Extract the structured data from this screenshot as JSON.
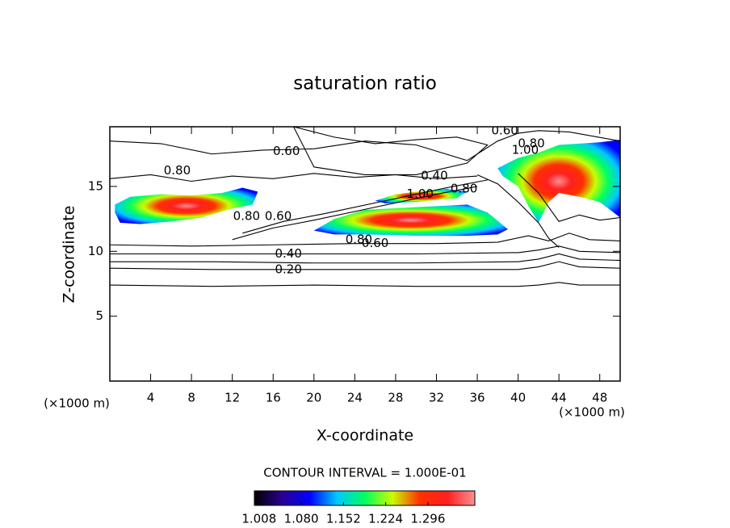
{
  "chart_data": {
    "type": "contour",
    "title": "saturation ratio",
    "xlabel": "X-coordinate",
    "ylabel": "Z-coordinate",
    "x_unit": "(×1000 m)",
    "y_unit": "(×1000 m)",
    "xlim": [
      0,
      50
    ],
    "ylim": [
      0,
      19.6
    ],
    "xticks": [
      4,
      8,
      12,
      16,
      20,
      24,
      28,
      32,
      36,
      40,
      44,
      48
    ],
    "yticks": [
      5,
      10,
      15
    ],
    "contour_interval_text": "CONTOUR INTERVAL = 1.000E-01",
    "line_color": "#000000",
    "contours": [
      {
        "x": [
          0,
          10,
          20,
          30,
          40,
          42,
          44,
          46,
          50
        ],
        "z": [
          7.4,
          7.3,
          7.4,
          7.3,
          7.3,
          7.4,
          7.6,
          7.4,
          7.4
        ]
      },
      {
        "x": [
          0,
          10,
          20,
          30,
          40,
          42,
          44,
          46,
          50
        ],
        "z": [
          8.7,
          8.6,
          8.6,
          8.6,
          8.6,
          8.8,
          9.2,
          8.8,
          8.7
        ]
      },
      {
        "x": [
          0,
          10,
          20,
          30,
          40,
          42,
          44,
          46,
          50
        ],
        "z": [
          9.2,
          9.2,
          9.1,
          9.1,
          9.2,
          9.4,
          9.8,
          9.4,
          9.3
        ]
      },
      {
        "x": [
          0,
          10,
          20,
          30,
          40,
          42,
          44,
          46,
          50
        ],
        "z": [
          9.8,
          9.8,
          9.8,
          9.8,
          9.9,
          10.1,
          10.4,
          10.0,
          9.9
        ]
      },
      {
        "x": [
          0,
          8,
          16,
          24,
          32,
          38,
          41,
          43,
          45,
          47,
          50
        ],
        "z": [
          10.5,
          10.4,
          10.5,
          10.6,
          10.6,
          10.7,
          11.2,
          10.8,
          11.4,
          10.9,
          10.8
        ]
      },
      {
        "x": [
          0,
          5,
          10,
          15,
          20,
          25,
          30,
          35,
          38,
          40,
          42,
          45,
          50
        ],
        "z": [
          18.5,
          18.3,
          17.5,
          17.8,
          17.9,
          18.5,
          18.2,
          17.0,
          18.5,
          19.1,
          19.3,
          19.2,
          18.5
        ]
      },
      {
        "x": [
          18,
          22,
          26,
          30,
          34,
          37,
          35,
          30,
          25,
          20,
          18
        ],
        "z": [
          19.6,
          18.8,
          18.3,
          18.6,
          18.8,
          18.2,
          16.8,
          15.9,
          15.9,
          16.5,
          19.6
        ]
      },
      {
        "x": [
          12,
          16,
          20,
          26,
          32,
          36
        ],
        "z": [
          10.9,
          11.8,
          12.4,
          13.4,
          14.4,
          15.0
        ]
      },
      {
        "x": [
          13,
          17,
          21,
          27,
          33,
          37
        ],
        "z": [
          11.4,
          12.3,
          12.9,
          13.9,
          14.9,
          15.5
        ]
      },
      {
        "x": [
          0,
          4,
          8,
          12,
          16,
          20,
          24,
          28,
          32,
          36
        ],
        "z": [
          15.6,
          15.9,
          15.4,
          15.8,
          15.6,
          16.0,
          15.7,
          15.9,
          15.6,
          15.8
        ]
      },
      {
        "x": [
          36,
          38,
          40,
          42,
          43,
          44
        ],
        "z": [
          15.9,
          15.2,
          13.8,
          12.2,
          11.0,
          10.3
        ]
      },
      {
        "x": [
          40,
          42,
          44,
          46,
          48,
          50
        ],
        "z": [
          16.0,
          14.5,
          12.3,
          12.8,
          12.4,
          12.6
        ]
      }
    ],
    "regions": [
      {
        "x": [
          0.5,
          2,
          5,
          8,
          11,
          13,
          14.5,
          14,
          12,
          9,
          6,
          3,
          1,
          0.5
        ],
        "z": [
          13.6,
          14.2,
          14.4,
          14.3,
          14.5,
          14.9,
          14.6,
          13.6,
          13.3,
          12.6,
          12.3,
          12.1,
          12.2,
          13
        ]
      },
      {
        "x": [
          20,
          22,
          25,
          30,
          35,
          37,
          39,
          38,
          35,
          30,
          25,
          22,
          20
        ],
        "z": [
          11.6,
          12.5,
          13.2,
          13.4,
          13.6,
          13,
          11.7,
          11.3,
          11.2,
          11.2,
          11.3,
          11.3,
          11.6
        ]
      },
      {
        "x": [
          38,
          40,
          42,
          44,
          46,
          48,
          50,
          50,
          48,
          46,
          44,
          43,
          42,
          41,
          40,
          38.5,
          38
        ],
        "z": [
          16.4,
          17.2,
          17.6,
          18.2,
          18.3,
          18.4,
          18.6,
          12.6,
          13.8,
          14.2,
          14.5,
          13.8,
          12.2,
          13.5,
          15,
          15.8,
          16.4
        ]
      },
      {
        "x": [
          26,
          28,
          30,
          33,
          35,
          34,
          30,
          27,
          26
        ],
        "z": [
          13.9,
          14.4,
          14.6,
          14.8,
          14.6,
          14.1,
          13.8,
          13.7,
          13.9
        ]
      }
    ],
    "contour_labels": [
      {
        "x": 17.3,
        "z": 17.7,
        "label": "0.60"
      },
      {
        "x": 6.6,
        "z": 16.2,
        "label": "0.80"
      },
      {
        "x": 31.8,
        "z": 15.8,
        "label": "0.40"
      },
      {
        "x": 30.4,
        "z": 14.4,
        "label": "1.00"
      },
      {
        "x": 34.7,
        "z": 14.8,
        "label": "0.80"
      },
      {
        "x": 38.7,
        "z": 19.3,
        "label": "0.60"
      },
      {
        "x": 41.3,
        "z": 18.3,
        "label": "0.80"
      },
      {
        "x": 40.7,
        "z": 17.8,
        "label": "1.00"
      },
      {
        "x": 13.4,
        "z": 12.7,
        "label": "0.80"
      },
      {
        "x": 16.5,
        "z": 12.7,
        "label": "0.60"
      },
      {
        "x": 24.4,
        "z": 10.9,
        "label": "0.80"
      },
      {
        "x": 26.0,
        "z": 10.6,
        "label": "0.60"
      },
      {
        "x": 17.5,
        "z": 9.8,
        "label": "0.40"
      },
      {
        "x": 17.5,
        "z": 8.6,
        "label": "0.20"
      }
    ],
    "colorbar": {
      "lim": [
        1.0,
        1.376
      ],
      "colors": [
        "#000000",
        "#2a0090",
        "#0000ff",
        "#00c8ff",
        "#00ff60",
        "#c8ff00",
        "#ff3000",
        "#ff2020",
        "#ff9090"
      ],
      "ticks": [
        1.008,
        {
          "value": 1.08,
          "label": "1.080"
        },
        1.152,
        1.224,
        1.296
      ]
    }
  }
}
